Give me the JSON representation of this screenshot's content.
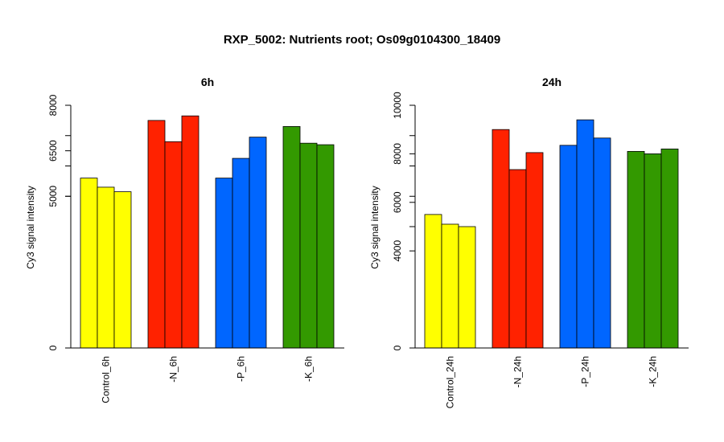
{
  "figure_title": "RXP_5002: Nutrients root; Os09g0104300_18409",
  "chart_data": [
    {
      "type": "bar",
      "title": "6h",
      "ylabel": "Cy3 signal intensity",
      "xlabel": "",
      "ylim": [
        0,
        8000
      ],
      "yticks": [
        0,
        5000,
        6500,
        8000
      ],
      "categories": [
        "Control_6h",
        "-N_6h",
        "-P_6h",
        "-K_6h"
      ],
      "group_colors": [
        "#ffff00",
        "#ff2200",
        "#0066ff",
        "#339900"
      ],
      "values": [
        [
          5600,
          5300,
          5150
        ],
        [
          7500,
          6800,
          7650
        ],
        [
          5600,
          6250,
          6950
        ],
        [
          7300,
          6750,
          6700
        ]
      ]
    },
    {
      "type": "bar",
      "title": "24h",
      "ylabel": "Cy3 signal intensity",
      "xlabel": "",
      "ylim": [
        0,
        10000
      ],
      "yticks": [
        0,
        4000,
        6000,
        8000,
        10000
      ],
      "categories": [
        "Control_24h",
        "-N_24h",
        "-P_24h",
        "-K_24h"
      ],
      "group_colors": [
        "#ffff00",
        "#ff2200",
        "#0066ff",
        "#339900"
      ],
      "values": [
        [
          5500,
          5100,
          5000
        ],
        [
          9000,
          7350,
          8050
        ],
        [
          8350,
          9400,
          8650
        ],
        [
          8100,
          8000,
          8200
        ]
      ]
    }
  ]
}
